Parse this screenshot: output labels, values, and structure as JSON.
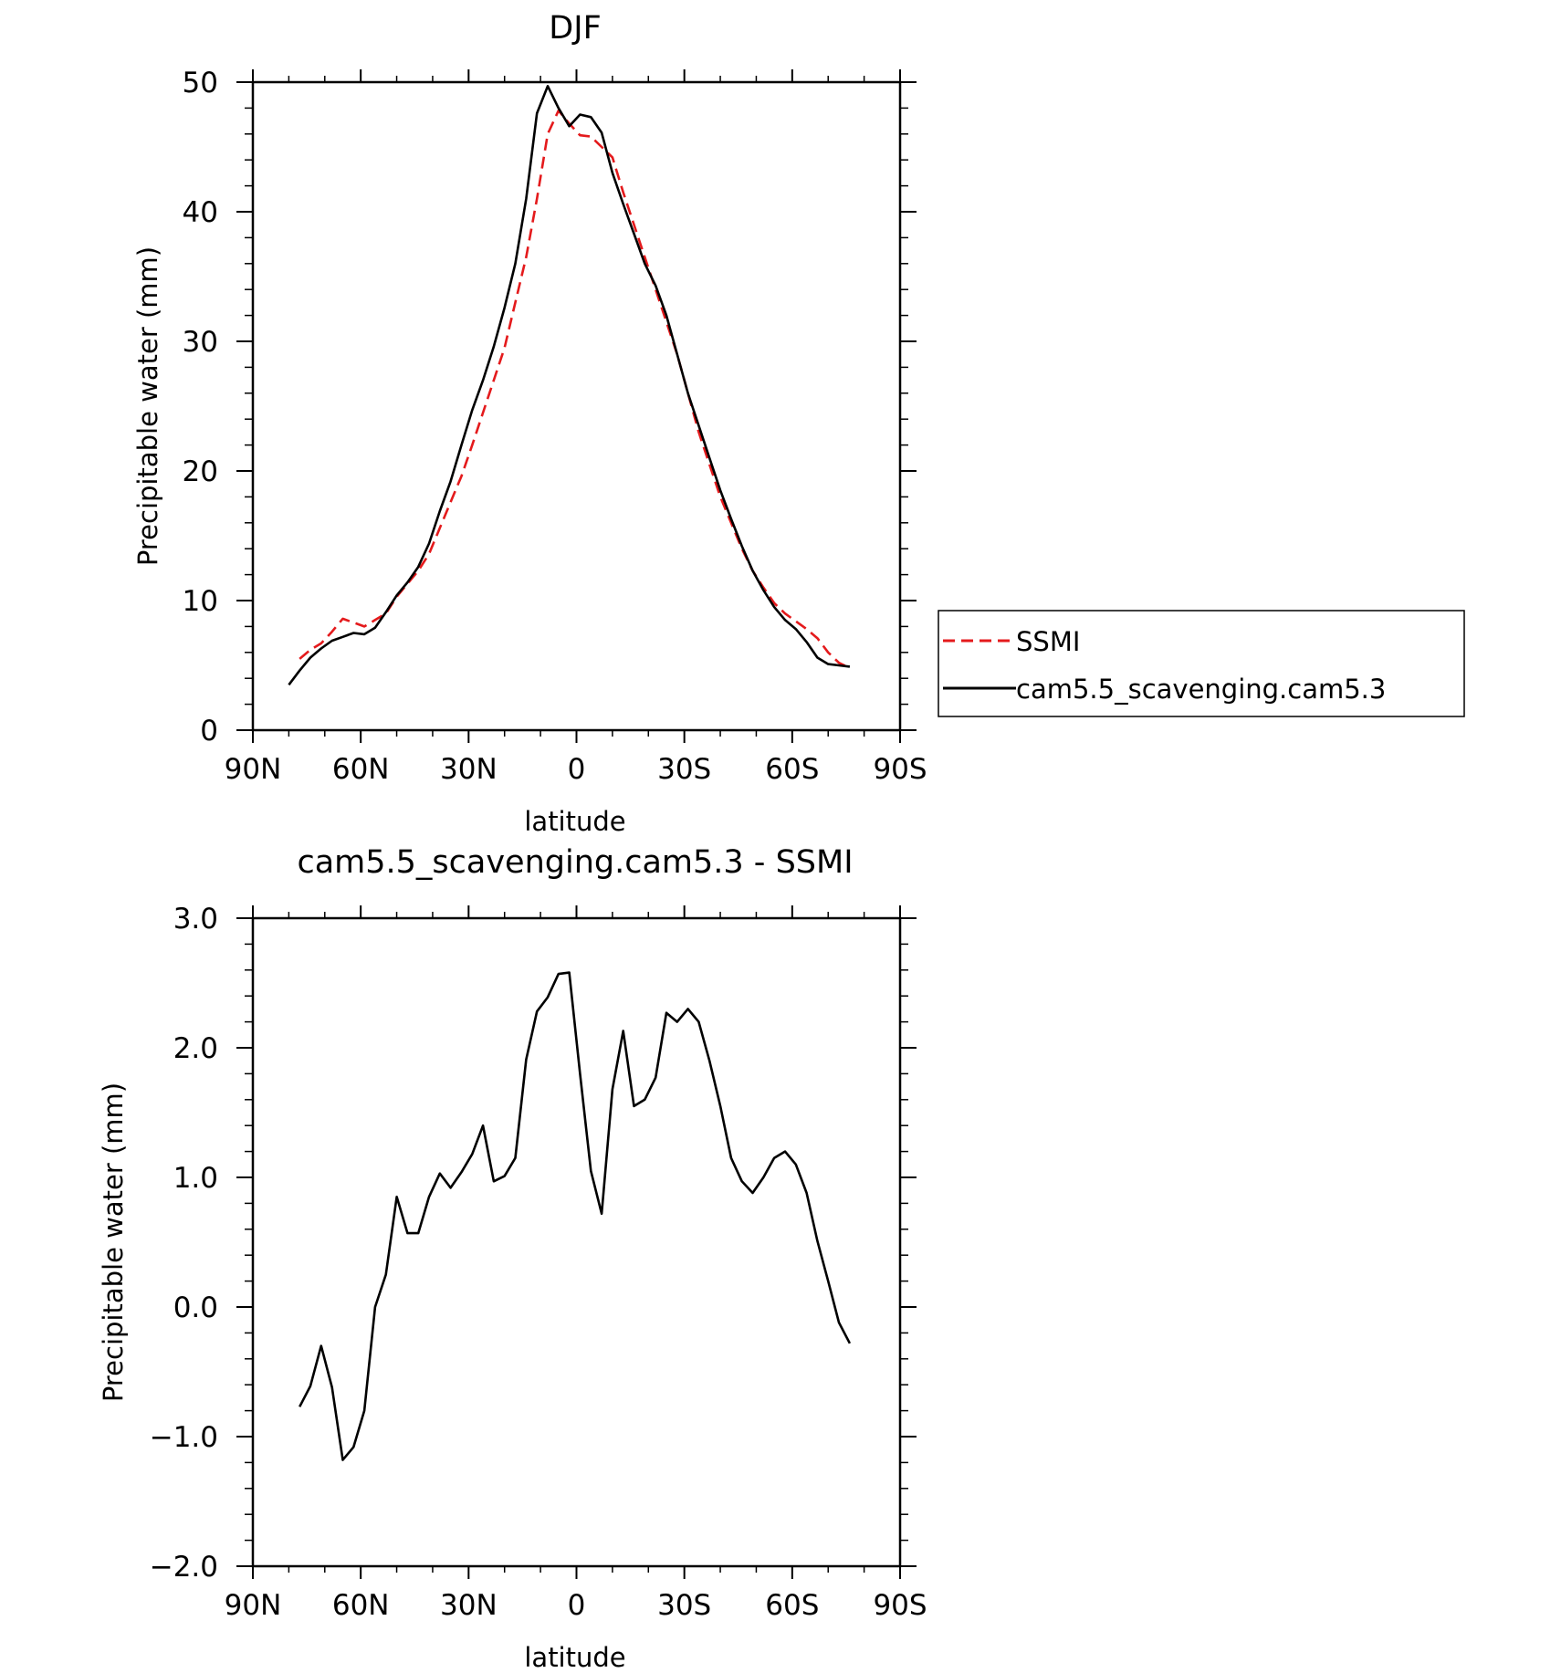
{
  "colors": {
    "ssmi": "#e41a1c",
    "model": "#000000",
    "axes": "#000000"
  },
  "chart_data": [
    {
      "type": "line",
      "title": "DJF",
      "xlabel": "latitude",
      "ylabel": "Precipitable water (mm)",
      "xlim": [
        90,
        -90
      ],
      "ylim": [
        0,
        50
      ],
      "grid": false,
      "legend": "right",
      "xticks": [
        {
          "value": 90,
          "label": "90N"
        },
        {
          "value": 60,
          "label": "60N"
        },
        {
          "value": 30,
          "label": "30N"
        },
        {
          "value": 0,
          "label": "0"
        },
        {
          "value": -30,
          "label": "30S"
        },
        {
          "value": -60,
          "label": "60S"
        },
        {
          "value": -90,
          "label": "90S"
        }
      ],
      "yticks": [
        {
          "value": 0,
          "label": "0"
        },
        {
          "value": 10,
          "label": "10"
        },
        {
          "value": 20,
          "label": "20"
        },
        {
          "value": 30,
          "label": "30"
        },
        {
          "value": 40,
          "label": "40"
        },
        {
          "value": 50,
          "label": "50"
        }
      ],
      "series": [
        {
          "name": "SSMI",
          "color": "#e41a1c",
          "dash": "dashed",
          "x": [
            77,
            74,
            71,
            68,
            65,
            62,
            59,
            56,
            53,
            50,
            47,
            44,
            41,
            38,
            35,
            32,
            29,
            26,
            23,
            20,
            17,
            14,
            11,
            8,
            5,
            2,
            -1,
            -4,
            -7,
            -10,
            -13,
            -16,
            -19,
            -22,
            -25,
            -28,
            -31,
            -34,
            -37,
            -40,
            -43,
            -46,
            -49,
            -52,
            -55,
            -58,
            -61,
            -64,
            -67,
            -70,
            -73,
            -76
          ],
          "y": [
            5.5,
            6.2,
            6.7,
            7.6,
            8.6,
            8.3,
            8.0,
            8.5,
            9.0,
            10.3,
            11.3,
            12.3,
            13.6,
            15.6,
            17.6,
            19.6,
            22.0,
            24.5,
            27.0,
            29.5,
            33.0,
            36.5,
            41.0,
            46.0,
            47.8,
            46.8,
            45.9,
            45.8,
            45.0,
            44.2,
            41.5,
            39.0,
            36.5,
            34.0,
            31.5,
            29.0,
            26.0,
            23.0,
            20.5,
            18.0,
            16.0,
            14.0,
            12.3,
            11.0,
            9.8,
            9.0,
            8.4,
            7.8,
            7.1,
            6.0,
            5.2,
            4.8
          ]
        },
        {
          "name": "cam5.5_scavenging.cam5.3",
          "color": "#000000",
          "dash": "solid",
          "x": [
            80,
            77,
            74,
            71,
            68,
            65,
            62,
            59,
            56,
            53,
            50,
            47,
            44,
            41,
            38,
            35,
            32,
            29,
            26,
            23,
            20,
            17,
            14,
            11,
            8,
            5,
            2,
            -1,
            -4,
            -7,
            -10,
            -13,
            -16,
            -19,
            -22,
            -25,
            -28,
            -31,
            -34,
            -37,
            -40,
            -43,
            -46,
            -49,
            -52,
            -55,
            -58,
            -61,
            -64,
            -67,
            -70,
            -73,
            -76
          ],
          "y": [
            3.5,
            4.6,
            5.6,
            6.3,
            6.9,
            7.2,
            7.5,
            7.4,
            7.9,
            9.1,
            10.4,
            11.4,
            12.6,
            14.4,
            16.9,
            19.2,
            22.0,
            24.7,
            27.0,
            29.6,
            32.6,
            36.0,
            41.0,
            47.6,
            49.7,
            48.0,
            46.6,
            47.5,
            47.3,
            46.1,
            43.0,
            40.6,
            38.3,
            36.0,
            34.3,
            32.0,
            29.0,
            26.0,
            23.5,
            21.0,
            18.5,
            16.3,
            14.2,
            12.3,
            10.8,
            9.5,
            8.5,
            7.8,
            6.8,
            5.6,
            5.1,
            5.0,
            4.9
          ]
        }
      ]
    },
    {
      "type": "line",
      "title": "cam5.5_scavenging.cam5.3 - SSMI",
      "xlabel": "latitude",
      "ylabel": "Precipitable water (mm)",
      "xlim": [
        90,
        -90
      ],
      "ylim": [
        -2.0,
        3.0
      ],
      "grid": false,
      "xticks": [
        {
          "value": 90,
          "label": "90N"
        },
        {
          "value": 60,
          "label": "60N"
        },
        {
          "value": 30,
          "label": "30N"
        },
        {
          "value": 0,
          "label": "0"
        },
        {
          "value": -30,
          "label": "30S"
        },
        {
          "value": -60,
          "label": "60S"
        },
        {
          "value": -90,
          "label": "90S"
        }
      ],
      "yticks": [
        {
          "value": -2.0,
          "label": "−2.0"
        },
        {
          "value": -1.0,
          "label": "−1.0"
        },
        {
          "value": 0.0,
          "label": "0.0"
        },
        {
          "value": 1.0,
          "label": "1.0"
        },
        {
          "value": 2.0,
          "label": "2.0"
        },
        {
          "value": 3.0,
          "label": "3.0"
        }
      ],
      "series": [
        {
          "color": "#000000",
          "dash": "solid",
          "x": [
            77,
            74,
            71,
            68,
            65,
            62,
            59,
            56,
            53,
            50,
            47,
            44,
            41,
            38,
            35,
            32,
            29,
            26,
            23,
            20,
            17,
            14,
            11,
            8,
            5,
            2,
            -1,
            -4,
            -7,
            -10,
            -13,
            -16,
            -19,
            -22,
            -25,
            -28,
            -31,
            -34,
            -37,
            -40,
            -43,
            -46,
            -49,
            -52,
            -55,
            -58,
            -61,
            -64,
            -67,
            -70,
            -73,
            -76
          ],
          "y": [
            -0.77,
            -0.61,
            -0.3,
            -0.62,
            -1.18,
            -1.08,
            -0.8,
            0.0,
            0.25,
            0.85,
            0.57,
            0.57,
            0.85,
            1.03,
            0.92,
            1.04,
            1.18,
            1.4,
            0.97,
            1.01,
            1.15,
            1.91,
            2.28,
            2.39,
            2.57,
            2.58,
            1.8,
            1.05,
            0.72,
            1.68,
            2.13,
            1.55,
            1.6,
            1.77,
            2.27,
            2.2,
            2.3,
            2.2,
            1.9,
            1.55,
            1.15,
            0.97,
            0.88,
            1.0,
            1.15,
            1.2,
            1.1,
            0.88,
            0.51,
            0.2,
            -0.12,
            -0.28
          ]
        }
      ]
    }
  ]
}
